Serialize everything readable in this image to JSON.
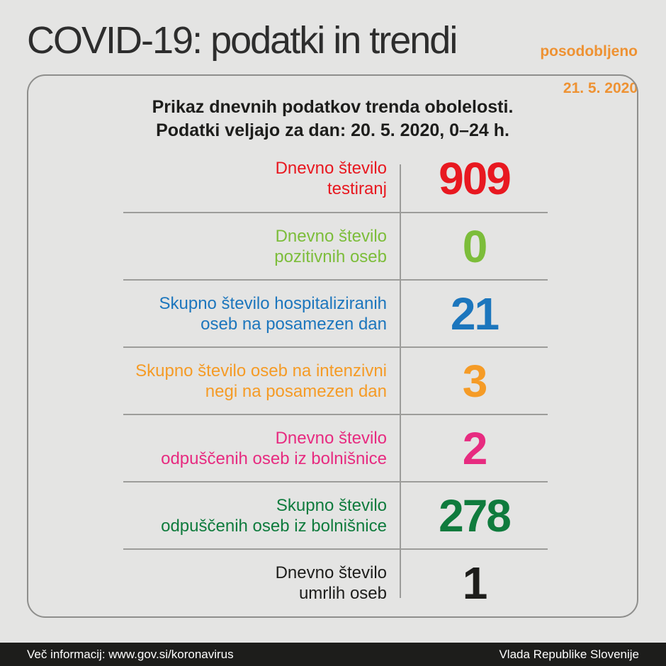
{
  "header": {
    "title": "COVID-19: podatki in trendi",
    "updated_label": "posodobljeno",
    "updated_date": "21. 5. 2020"
  },
  "card": {
    "subtitle_line1": "Prikaz dnevnih podatkov trenda obolelosti.",
    "subtitle_line2": "Podatki veljajo za dan: 20. 5. 2020, 0–24 h.",
    "rows": [
      {
        "label_l1": "Dnevno število",
        "label_l2": "testiranj",
        "value": "909",
        "color": "#e81820"
      },
      {
        "label_l1": "Dnevno število",
        "label_l2": "pozitivnih oseb",
        "value": "0",
        "color": "#7cbd3a"
      },
      {
        "label_l1": "Skupno število hospitaliziranih",
        "label_l2": "oseb na posamezen dan",
        "value": "21",
        "color": "#1c76bd"
      },
      {
        "label_l1": "Skupno število oseb na intenzivni",
        "label_l2": "negi na posamezen dan",
        "value": "3",
        "color": "#f59b26"
      },
      {
        "label_l1": "Dnevno število",
        "label_l2": "odpuščenih oseb iz bolnišnice",
        "value": "2",
        "color": "#e72b80"
      },
      {
        "label_l1": "Skupno število",
        "label_l2": "odpuščenih oseb iz bolnišnice",
        "value": "278",
        "color": "#0f7b3d"
      },
      {
        "label_l1": "Dnevno število",
        "label_l2": "umrlih oseb",
        "value": "1",
        "color": "#1d1d1b"
      }
    ]
  },
  "footer": {
    "left_text": "Več informacij: www.gov.si/koronavirus",
    "right_text": "Vlada Republike Slovenije"
  },
  "colors": {
    "accent_orange": "#ee9233",
    "footer_bg": "#1d1d1b",
    "page_bg": "#e4e4e3",
    "divider": "#9c9c9a"
  },
  "chart_data": {
    "type": "table",
    "title": "COVID-19: podatki in trendi",
    "subtitle": "Prikaz dnevnih podatkov trenda obolelosti. Podatki veljajo za dan: 20. 5. 2020, 0–24 h.",
    "updated": "posodobljeno 21. 5. 2020",
    "categories": [
      "Dnevno število testiranj",
      "Dnevno število pozitivnih oseb",
      "Skupno število hospitaliziranih oseb na posamezen dan",
      "Skupno število oseb na intenzivni negi na posamezen dan",
      "Dnevno število odpuščenih oseb iz bolnišnice",
      "Skupno število odpuščenih oseb iz bolnišnice",
      "Dnevno število umrlih oseb"
    ],
    "values": [
      909,
      0,
      21,
      3,
      2,
      278,
      1
    ],
    "series_colors": [
      "#e81820",
      "#7cbd3a",
      "#1c76bd",
      "#f59b26",
      "#e72b80",
      "#0f7b3d",
      "#1d1d1b"
    ]
  }
}
